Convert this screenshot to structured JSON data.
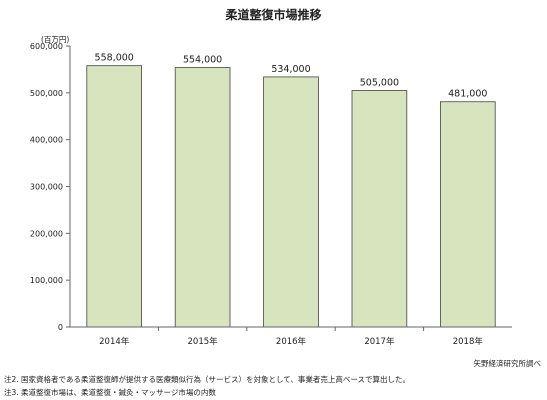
{
  "chart_data": {
    "type": "bar",
    "title": "柔道整復市場推移",
    "unit_label": "(百万円)",
    "categories": [
      "2014年",
      "2015年",
      "2016年",
      "2017年",
      "2018年"
    ],
    "values": [
      558000,
      554000,
      534000,
      505000,
      481000
    ],
    "data_labels": [
      "558,000",
      "554,000",
      "534,000",
      "505,000",
      "481,000"
    ],
    "ylim": [
      0,
      600000
    ],
    "yticks": [
      0,
      100000,
      200000,
      300000,
      400000,
      500000,
      600000
    ],
    "ytick_labels": [
      "0",
      "100,000",
      "200,000",
      "300,000",
      "400,000",
      "500,000",
      "600,000"
    ],
    "xlabel": "",
    "ylabel": "",
    "grid": false,
    "bar_color": "#d7e4bd",
    "bar_edge_color": "#444444"
  },
  "source": "矢野経済研究所調べ",
  "notes": [
    "注2.  国家資格者である柔道整復師が提供する医療類似行為（サービス）を対象として、事業者売上高ベースで算出した。",
    "注3.  柔道整復市場は、柔道整復・鍼灸・マッサージ市場の内数"
  ]
}
